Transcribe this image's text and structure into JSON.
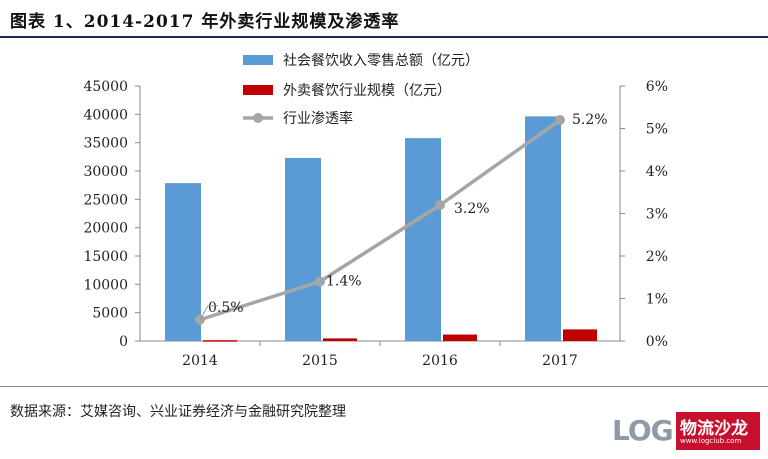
{
  "title": "图表 1、2014-2017 年外卖行业规模及渗透率",
  "source": "数据来源：艾媒咨询、兴业证券经济与金融研究院整理",
  "logo": {
    "text_latin": "LOG",
    "text_cn": "物流沙龙",
    "sub": "www.logclub.com"
  },
  "colors": {
    "bar1": "#5b9bd5",
    "bar2": "#c00000",
    "line": "#a6a6a6",
    "rule": "#1f2d4d"
  },
  "chart_data": {
    "type": "bar",
    "categories": [
      "2014",
      "2015",
      "2016",
      "2017"
    ],
    "series": [
      {
        "name": "社会餐饮收入零售总额（亿元）",
        "type": "bar",
        "axis": "left",
        "values": [
          27860,
          32310,
          35800,
          39640
        ]
      },
      {
        "name": "外卖餐饮行业规模（亿元）",
        "type": "bar",
        "axis": "left",
        "values": [
          140,
          460,
          1140,
          2050
        ]
      },
      {
        "name": "行业渗透率",
        "type": "line",
        "axis": "right",
        "values": [
          0.5,
          1.4,
          3.2,
          5.2
        ],
        "labels": [
          "0.5%",
          "1.4%",
          "3.2%",
          "5.2%"
        ]
      }
    ],
    "y_left": {
      "ylim": [
        0,
        45000
      ],
      "ticks": [
        "0",
        "5000",
        "10000",
        "15000",
        "20000",
        "25000",
        "30000",
        "35000",
        "40000",
        "45000"
      ]
    },
    "y_right": {
      "ylim": [
        0,
        6
      ],
      "ticks": [
        "0%",
        "1%",
        "2%",
        "3%",
        "4%",
        "5%",
        "6%"
      ]
    },
    "legend": "top-center",
    "grid": false
  }
}
